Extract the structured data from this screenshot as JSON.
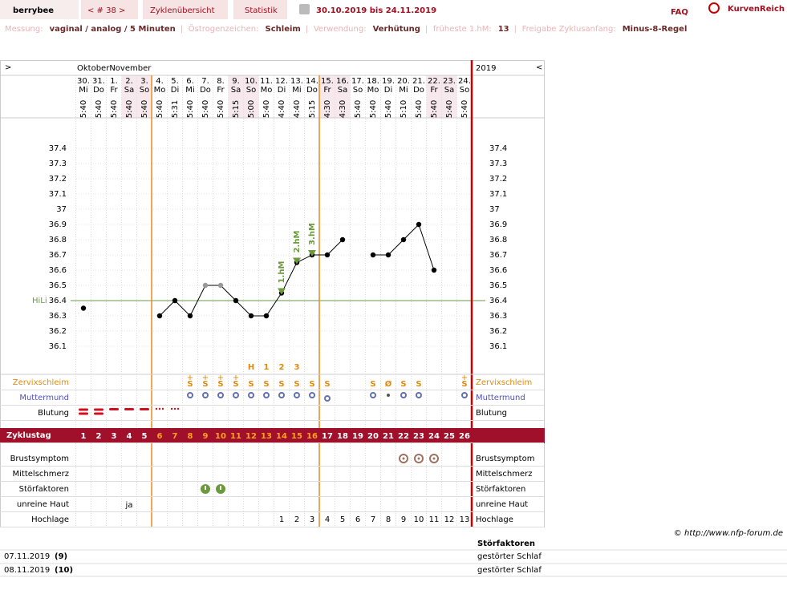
{
  "header": {
    "user": "berrybee",
    "cycle": "< # 38 >",
    "tabs": [
      "Zyklenübersicht",
      "Statistik"
    ],
    "range": "30.10.2019 bis 24.11.2019",
    "faq": "FAQ",
    "brand": "KurvenReich"
  },
  "settings": {
    "separator": "|",
    "items": [
      {
        "label": "Messung:",
        "value": "vaginal / analog / 5 Minuten"
      },
      {
        "label": "Östrogenzeichen:",
        "value": "Schleim"
      },
      {
        "label": "Verwendung:",
        "value": "Verhütung"
      },
      {
        "label": "früheste 1.hM:",
        "value": "13"
      },
      {
        "label": "Freigabe Zyklusanfang:",
        "value": "Minus-8-Regel"
      }
    ]
  },
  "chart_data": {
    "type": "line",
    "nav_left": ">",
    "nav_right": "<",
    "month_label": "OktoberNovember",
    "year": "2019",
    "categories": [
      "30.",
      "31.",
      "1.",
      "2.",
      "3.",
      "4.",
      "5.",
      "6.",
      "7.",
      "8.",
      "9.",
      "10.",
      "11.",
      "12.",
      "13.",
      "14.",
      "15.",
      "16.",
      "17.",
      "18.",
      "19.",
      "20.",
      "21.",
      "22.",
      "23.",
      "24."
    ],
    "weekdays": [
      "Mi",
      "Do",
      "Fr",
      "Sa",
      "So",
      "Mo",
      "Di",
      "Mi",
      "Do",
      "Fr",
      "Sa",
      "So",
      "Mo",
      "Di",
      "Mi",
      "Do",
      "Fr",
      "Sa",
      "So",
      "Mo",
      "Di",
      "Mi",
      "Do",
      "Fr",
      "Sa",
      "So"
    ],
    "times": [
      "5:40",
      "5:40",
      "5:40",
      "5:40",
      "5:40",
      "5:40",
      "5:31",
      "5:40",
      "5:40",
      "5:40",
      "5:15",
      "5:00",
      "5:40",
      "4:40",
      "4:40",
      "5:15",
      "4:30",
      "4:30",
      "5:40",
      "5:40",
      "5:40",
      "5:10",
      "5:40",
      "5:40",
      "5:40",
      "5:40"
    ],
    "series": [
      {
        "color": "#000000",
        "values": [
          36.35,
          null,
          null,
          null,
          null,
          36.3,
          36.4,
          36.3,
          36.5,
          36.5,
          36.4,
          36.3,
          36.3,
          36.45,
          36.65,
          36.7,
          36.7,
          36.8,
          null,
          36.7,
          36.7,
          36.8,
          36.9,
          36.6,
          null,
          null
        ],
        "point_colors": [
          "#000000",
          null,
          null,
          null,
          null,
          "#000000",
          "#000000",
          "#000000",
          "#999999",
          "#999999",
          "#000000",
          "#000000",
          "#000000",
          "#000000",
          "#000000",
          "#000000",
          "#000000",
          "#000000",
          null,
          "#000000",
          "#000000",
          "#000000",
          "#000000",
          "#000000",
          null,
          null
        ]
      }
    ],
    "ylim": [
      36.0,
      37.6
    ],
    "yticks": [
      37.4,
      37.3,
      37.2,
      37.1,
      37,
      36.9,
      36.8,
      36.7,
      36.6,
      36.5,
      36.4,
      36.3,
      36.2,
      36.1
    ],
    "hili": {
      "label": "HiLi",
      "value": 36.4,
      "color": "#6a9a4a"
    },
    "hm_labels": [
      null,
      null,
      null,
      null,
      null,
      null,
      null,
      null,
      null,
      null,
      null,
      null,
      null,
      "1.hM",
      "2.hM",
      "3.hM",
      null,
      null,
      null,
      null,
      null,
      null,
      null,
      null,
      null,
      null
    ],
    "grid": true
  },
  "rows": {
    "cervix": {
      "label": "Zervixschleim",
      "top": [
        null,
        null,
        null,
        null,
        null,
        null,
        null,
        null,
        null,
        null,
        null,
        "H",
        "1",
        "2",
        "3",
        null,
        null,
        null,
        null,
        null,
        null,
        null,
        null,
        null,
        null,
        null
      ],
      "plus": [
        null,
        null,
        null,
        null,
        null,
        null,
        null,
        "+",
        "+",
        "+",
        "+",
        null,
        null,
        null,
        null,
        null,
        null,
        null,
        null,
        null,
        null,
        null,
        null,
        null,
        null,
        "+"
      ],
      "values": [
        null,
        null,
        null,
        null,
        null,
        null,
        null,
        "S",
        "S",
        "S",
        "S",
        "S",
        "S",
        "S",
        "S",
        "S",
        "S",
        null,
        null,
        "S",
        "Ø",
        "S",
        "S",
        null,
        null,
        "S"
      ]
    },
    "os": {
      "label": "Muttermund"
    },
    "bleeding": {
      "label": "Blutung"
    },
    "cycle_day": {
      "label": "Zyklustag",
      "values": [
        1,
        2,
        3,
        4,
        5,
        6,
        7,
        8,
        9,
        10,
        11,
        12,
        13,
        14,
        15,
        16,
        17,
        18,
        19,
        20,
        21,
        22,
        23,
        24,
        25,
        26
      ]
    },
    "breast": {
      "label": "Brustsymptom"
    },
    "pain": {
      "label": "Mittelschmerz"
    },
    "disturb": {
      "label": "Störfaktoren"
    },
    "skin": {
      "label": "unreine Haut",
      "values": [
        null,
        null,
        null,
        "ja",
        null,
        null,
        null,
        null,
        null,
        null,
        null,
        null,
        null,
        null,
        null,
        null,
        null,
        null,
        null,
        null,
        null,
        null,
        null,
        null,
        null,
        null
      ]
    },
    "high": {
      "label": "Hochlage",
      "values": [
        null,
        null,
        null,
        null,
        null,
        null,
        null,
        null,
        null,
        null,
        null,
        null,
        null,
        1,
        2,
        3,
        4,
        5,
        6,
        7,
        8,
        9,
        10,
        11,
        12,
        13
      ]
    }
  },
  "footer": {
    "copyright": "© http://www.nfp-forum.de",
    "table": {
      "header": "Störfaktoren",
      "rows": [
        [
          "07.11.2019",
          "(9)",
          "gestörter Schlaf"
        ],
        [
          "08.11.2019",
          "(10)",
          "gestörter Schlaf"
        ]
      ]
    }
  }
}
